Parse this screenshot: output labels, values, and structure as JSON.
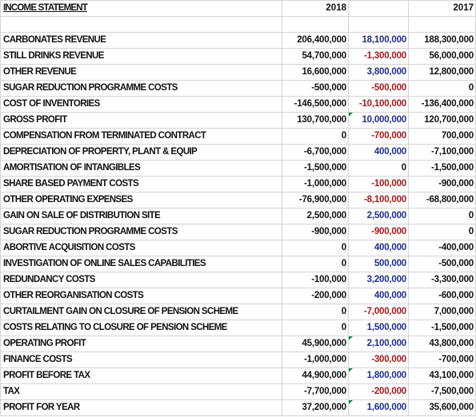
{
  "header": {
    "title": "INCOME STATEMENT",
    "year_current": "2018",
    "year_prior": "2017"
  },
  "rows": [
    {
      "label": "CARBONATES REVENUE",
      "y2018": "206,400,000",
      "diff": "18,100,000",
      "diff_sign": "pos",
      "y2017": "188,300,000",
      "mark": false
    },
    {
      "label": "STILL DRINKS REVENUE",
      "y2018": "54,700,000",
      "diff": "-1,300,000",
      "diff_sign": "neg",
      "y2017": "56,000,000",
      "mark": false
    },
    {
      "label": "OTHER REVENUE",
      "y2018": "16,600,000",
      "diff": "3,800,000",
      "diff_sign": "pos",
      "y2017": "12,800,000",
      "mark": false
    },
    {
      "label": "SUGAR REDUCTION PROGRAMME COSTS",
      "y2018": "-500,000",
      "diff": "-500,000",
      "diff_sign": "neg",
      "y2017": "0",
      "mark": false
    },
    {
      "label": "COST OF INVENTORIES",
      "y2018": "-146,500,000",
      "diff": "-10,100,000",
      "diff_sign": "neg",
      "y2017": "-136,400,000",
      "mark": false
    },
    {
      "label": "GROSS PROFIT",
      "y2018": "130,700,000",
      "diff": "10,000,000",
      "diff_sign": "pos",
      "y2017": "120,700,000",
      "mark": true
    },
    {
      "label": "COMPENSATION FROM TERMINATED CONTRACT",
      "y2018": "0",
      "diff": "-700,000",
      "diff_sign": "neg",
      "y2017": "700,000",
      "mark": false
    },
    {
      "label": "DEPRECIATION OF PROPERTY, PLANT & EQUIP",
      "y2018": "-6,700,000",
      "diff": "400,000",
      "diff_sign": "pos",
      "y2017": "-7,100,000",
      "mark": false
    },
    {
      "label": "AMORTISATION OF INTANGIBLES",
      "y2018": "-1,500,000",
      "diff": "0",
      "diff_sign": "zero",
      "y2017": "-1,500,000",
      "mark": false
    },
    {
      "label": "SHARE BASED PAYMENT COSTS",
      "y2018": "-1,000,000",
      "diff": "-100,000",
      "diff_sign": "neg",
      "y2017": "-900,000",
      "mark": false
    },
    {
      "label": "OTHER OPERATING EXPENSES",
      "y2018": "-76,900,000",
      "diff": "-8,100,000",
      "diff_sign": "neg",
      "y2017": "-68,800,000",
      "mark": false
    },
    {
      "label": "GAIN ON SALE OF DISTRIBUTION SITE",
      "y2018": "2,500,000",
      "diff": "2,500,000",
      "diff_sign": "pos",
      "y2017": "0",
      "mark": false
    },
    {
      "label": "SUGAR REDUCTION PROGRAMME COSTS",
      "y2018": "-900,000",
      "diff": "-900,000",
      "diff_sign": "neg",
      "y2017": "0",
      "mark": false
    },
    {
      "label": "ABORTIVE ACQUISITION COSTS",
      "y2018": "0",
      "diff": "400,000",
      "diff_sign": "pos",
      "y2017": "-400,000",
      "mark": false
    },
    {
      "label": "INVESTIGATION OF ONLINE SALES CAPABILITIES",
      "y2018": "0",
      "diff": "500,000",
      "diff_sign": "pos",
      "y2017": "-500,000",
      "mark": false
    },
    {
      "label": "REDUNDANCY COSTS",
      "y2018": "-100,000",
      "diff": "3,200,000",
      "diff_sign": "pos",
      "y2017": "-3,300,000",
      "mark": false
    },
    {
      "label": "OTHER REORGANISATION COSTS",
      "y2018": "-200,000",
      "diff": "400,000",
      "diff_sign": "pos",
      "y2017": "-600,000",
      "mark": false
    },
    {
      "label": "CURTAILMENT GAIN ON CLOSURE OF PENSION SCHEME",
      "y2018": "0",
      "diff": "-7,000,000",
      "diff_sign": "neg",
      "y2017": "7,000,000",
      "mark": false
    },
    {
      "label": "COSTS RELATING TO CLOSURE OF PENSION SCHEME",
      "y2018": "0",
      "diff": "1,500,000",
      "diff_sign": "pos",
      "y2017": "-1,500,000",
      "mark": false
    },
    {
      "label": "OPERATING PROFIT",
      "y2018": "45,900,000",
      "diff": "2,100,000",
      "diff_sign": "pos",
      "y2017": "43,800,000",
      "mark": true
    },
    {
      "label": "FINANCE COSTS",
      "y2018": "-1,000,000",
      "diff": "-300,000",
      "diff_sign": "neg",
      "y2017": "-700,000",
      "mark": false
    },
    {
      "label": "PROFIT BEFORE TAX",
      "y2018": "44,900,000",
      "diff": "1,800,000",
      "diff_sign": "pos",
      "y2017": "43,100,000",
      "mark": true
    },
    {
      "label": "TAX",
      "y2018": "-7,700,000",
      "diff": "-200,000",
      "diff_sign": "neg",
      "y2017": "-7,500,000",
      "mark": false
    },
    {
      "label": "PROFIT FOR YEAR",
      "y2018": "37,200,000",
      "diff": "1,600,000",
      "diff_sign": "pos",
      "y2017": "35,600,000",
      "mark": true
    }
  ],
  "colors": {
    "diff_positive": "#1f2f8a",
    "diff_negative": "#a11a1a",
    "grid": "#d4d4d4",
    "error_mark": "#1e8a3a"
  }
}
